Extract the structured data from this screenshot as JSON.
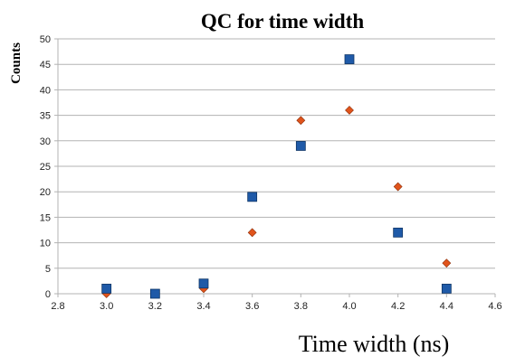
{
  "chart_data": {
    "type": "scatter",
    "title": "QC for time width",
    "xlabel": "Time width (ns)",
    "ylabel": "Counts",
    "xlim": [
      2.8,
      4.6
    ],
    "ylim": [
      0,
      50
    ],
    "x_ticks": [
      "2.8",
      "3.0",
      "3.2",
      "3.4",
      "3.6",
      "3.8",
      "4.0",
      "4.2",
      "4.4",
      "4.6"
    ],
    "y_ticks": [
      "0",
      "5",
      "10",
      "15",
      "20",
      "25",
      "30",
      "35",
      "40",
      "45",
      "50"
    ],
    "grid": "horizontal",
    "legend": "none",
    "series": [
      {
        "marker": "square",
        "color": "#1f5aa8",
        "x": [
          3.0,
          3.2,
          3.4,
          3.6,
          3.8,
          4.0,
          4.2,
          4.4
        ],
        "y": [
          1,
          0,
          2,
          19,
          29,
          46,
          12,
          1
        ]
      },
      {
        "marker": "diamond",
        "color": "#e0541c",
        "x": [
          3.0,
          3.2,
          3.4,
          3.6,
          3.8,
          4.0,
          4.2,
          4.4
        ],
        "y": [
          0,
          0,
          1,
          12,
          34,
          36,
          21,
          6
        ]
      }
    ]
  }
}
